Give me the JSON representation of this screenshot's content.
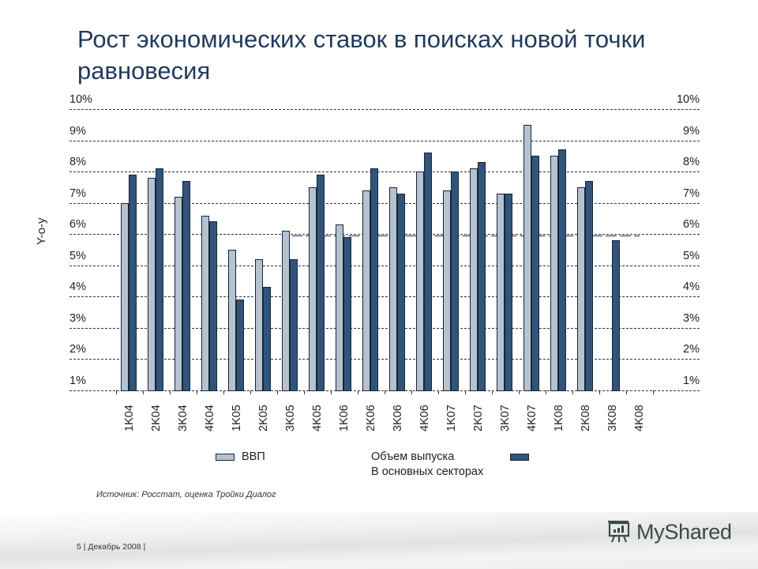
{
  "title": "Рост экономических ставок в поисках новой точки равновесия",
  "axis": {
    "y_title": "Y-o-y",
    "y_ticks": [
      "10%",
      "9%",
      "8%",
      "7%",
      "6%",
      "5%",
      "4%",
      "3%",
      "2%",
      "1%"
    ]
  },
  "legend": {
    "gdp": "ВВП",
    "output_line1": "Объем выпуска",
    "output_line2": "В основных секторах"
  },
  "source": "Источник: Росстат, оценка Тройки Диалог",
  "footer": {
    "page": "5",
    "date": "Декабрь 2008",
    "text": "5  |  Декабрь 2008 |"
  },
  "logo": {
    "text": "MyShared",
    "icon": "presentation-board-icon"
  },
  "colors": {
    "gdp": "#b6c3cf",
    "output": "#325479",
    "title": "#1f3a5c",
    "border": "#14263b"
  },
  "chart_data": {
    "type": "bar",
    "title": "Рост экономических ставок в поисках новой точки равновесия",
    "xlabel": "",
    "ylabel": "Y-o-y",
    "ylim": [
      1,
      10
    ],
    "grid": true,
    "legend_position": "bottom",
    "categories": [
      "1K04",
      "2K04",
      "3K04",
      "4K04",
      "1K05",
      "2K05",
      "3K05",
      "4K05",
      "1K06",
      "2K06",
      "3K06",
      "4K06",
      "1K07",
      "2K07",
      "3K07",
      "4K07",
      "1K08",
      "2K08",
      "3K08",
      "4K08"
    ],
    "series": [
      {
        "name": "ВВП",
        "values": [
          7.0,
          7.8,
          7.2,
          6.6,
          5.5,
          5.2,
          6.1,
          7.5,
          6.3,
          7.4,
          7.5,
          8.0,
          7.4,
          8.1,
          7.3,
          9.5,
          8.5,
          7.5,
          null,
          null
        ]
      },
      {
        "name": "Объем выпуска В основных секторах",
        "values": [
          7.9,
          8.1,
          7.7,
          6.4,
          3.9,
          4.3,
          5.2,
          7.9,
          5.9,
          8.1,
          7.3,
          8.6,
          8.0,
          8.3,
          7.3,
          8.5,
          8.7,
          7.7,
          5.8,
          null
        ]
      }
    ],
    "annotations": [
      {
        "type": "horizontal-line",
        "value": 5.9,
        "from": "3K05",
        "to": "3K08",
        "style": "long-dash"
      }
    ]
  }
}
